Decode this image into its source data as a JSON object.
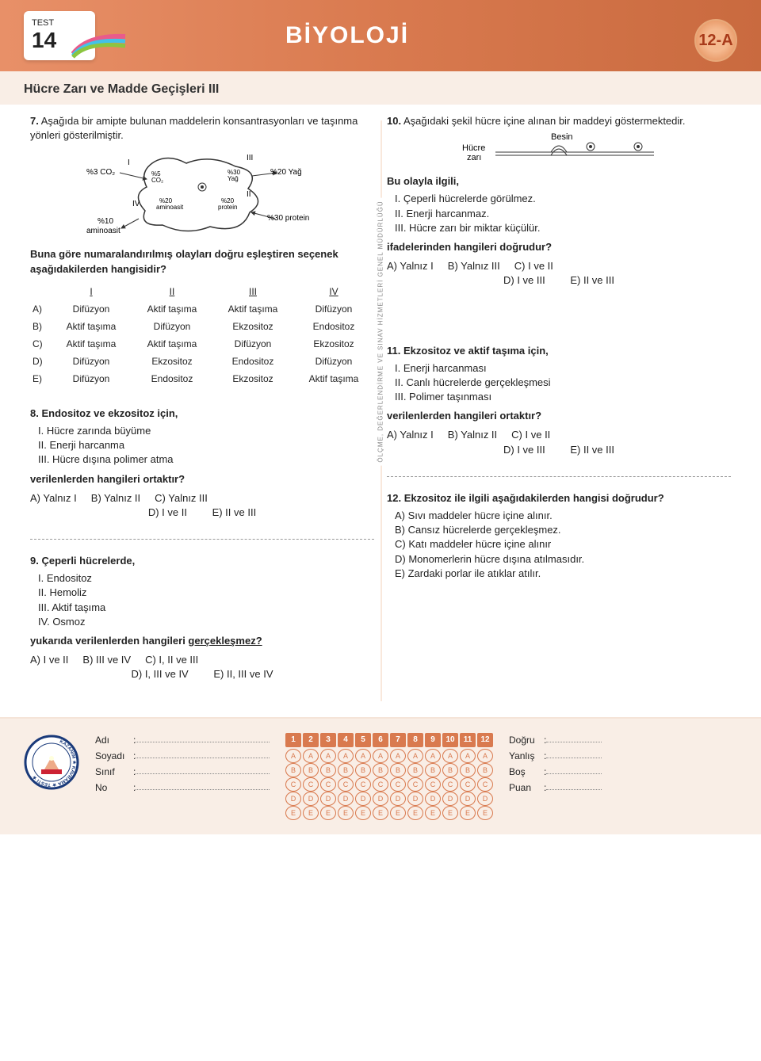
{
  "header": {
    "test_word": "TEST",
    "test_num": "14",
    "title": "BİYOLOJİ",
    "class": "12-A",
    "subtitle": "Hücre Zarı ve Madde Geçişleri III"
  },
  "divider_text": "ÖLÇME, DEĞERLENDİRME VE SINAV HİZMETLERİ GENEL MÜDÜRLÜĞÜ",
  "cell_labels": {
    "I": "I",
    "II": "II",
    "III": "III",
    "IV": "IV",
    "l_co2": "%3 CO₂",
    "in_co2": "%5 CO₂",
    "l_amino": "%10 aminoasit",
    "in_amino": "%20 aminoasit",
    "in_yag": "%30 Yağ",
    "r_yag": "%20 Yağ",
    "in_prot": "%20 protein",
    "r_prot": "%30 protein"
  },
  "q7": {
    "num": "7.",
    "prompt": "Aşağıda bir amipte bulunan maddelerin konsantrasyonları ve taşınma yönleri gösterilmiştir.",
    "sub": "Buna göre numaralandırılmış olayları doğru eşleştiren seçenek aşağıdakilerden hangisidir?",
    "cols": [
      "I",
      "II",
      "III",
      "IV"
    ],
    "rows": [
      {
        "k": "A)",
        "c": [
          "Difüzyon",
          "Aktif taşıma",
          "Aktif taşıma",
          "Difüzyon"
        ]
      },
      {
        "k": "B)",
        "c": [
          "Aktif taşıma",
          "Difüzyon",
          "Ekzositoz",
          "Endositoz"
        ]
      },
      {
        "k": "C)",
        "c": [
          "Aktif taşıma",
          "Aktif taşıma",
          "Difüzyon",
          "Ekzositoz"
        ]
      },
      {
        "k": "D)",
        "c": [
          "Difüzyon",
          "Ekzositoz",
          "Endositoz",
          "Difüzyon"
        ]
      },
      {
        "k": "E)",
        "c": [
          "Difüzyon",
          "Endositoz",
          "Ekzositoz",
          "Aktif taşıma"
        ]
      }
    ]
  },
  "q8": {
    "num": "8.",
    "prompt": "Endositoz ve ekzositoz için,",
    "st": [
      "I.  Hücre zarında büyüme",
      "II. Enerji harcanma",
      "III. Hücre dışına polimer atma"
    ],
    "sub": "verilenlerden hangileri ortaktır?",
    "opt1": [
      "A) Yalnız I",
      "B) Yalnız II",
      "C) Yalnız III"
    ],
    "opt2": [
      "D) I ve II",
      "E) II ve III"
    ]
  },
  "q9": {
    "num": "9.",
    "prompt": "Çeperli hücrelerde,",
    "st": [
      "I.  Endositoz",
      "II. Hemoliz",
      "III. Aktif taşıma",
      "IV. Osmoz"
    ],
    "sub_a": "yukarıda verilenlerden hangileri ",
    "sub_b": "gerçekleşmez?",
    "opt1": [
      "A) I ve II",
      "B) III ve IV",
      "C) I, II ve III"
    ],
    "opt2": [
      "D) I, III ve IV",
      "E) II, III ve IV"
    ]
  },
  "q10": {
    "num": "10.",
    "prompt": "Aşağıdaki şekil hücre içine alınan bir maddeyi göstermektedir.",
    "lbl_besin": "Besin",
    "lbl_hucre": "Hücre zarı",
    "sub_top": "Bu olayla ilgili,",
    "st": [
      "I.  Çeperli hücrelerde görülmez.",
      "II. Enerji harcanmaz.",
      "III. Hücre zarı bir miktar küçülür."
    ],
    "sub": "ifadelerinden hangileri doğrudur?",
    "opt1": [
      "A) Yalnız I",
      "B) Yalnız III",
      "C) I ve II"
    ],
    "opt2": [
      "D) I ve III",
      "E) II ve III"
    ]
  },
  "q11": {
    "num": "11.",
    "prompt": "Ekzositoz ve aktif taşıma için,",
    "st": [
      "I.  Enerji harcanması",
      "II. Canlı hücrelerde gerçekleşmesi",
      "III. Polimer taşınması"
    ],
    "sub": "verilenlerden hangileri ortaktır?",
    "opt1": [
      "A) Yalnız I",
      "B) Yalnız II",
      "C) I ve II"
    ],
    "opt2": [
      "D) I ve III",
      "E) II ve III"
    ]
  },
  "q12": {
    "num": "12.",
    "prompt": "Ekzositoz ile ilgili aşağıdakilerden hangisi doğrudur?",
    "opts": [
      "A) Sıvı maddeler hücre içine alınır.",
      "B) Cansız hücrelerde gerçekleşmez.",
      "C) Katı maddeler  hücre içine alınır",
      "D) Monomerlerin hücre dışına atılmasıdır.",
      "E) Zardaki porlar ile atıklar atılır."
    ]
  },
  "footer": {
    "fields": [
      "Adı",
      "Soyadı",
      "Sınıf",
      "No"
    ],
    "nums": [
      "1",
      "2",
      "3",
      "4",
      "5",
      "6",
      "7",
      "8",
      "9",
      "10",
      "11",
      "12"
    ],
    "letters": [
      "A",
      "B",
      "C",
      "D",
      "E"
    ],
    "score": [
      "Doğru",
      "Yanlış",
      "Boş",
      "Puan"
    ]
  }
}
